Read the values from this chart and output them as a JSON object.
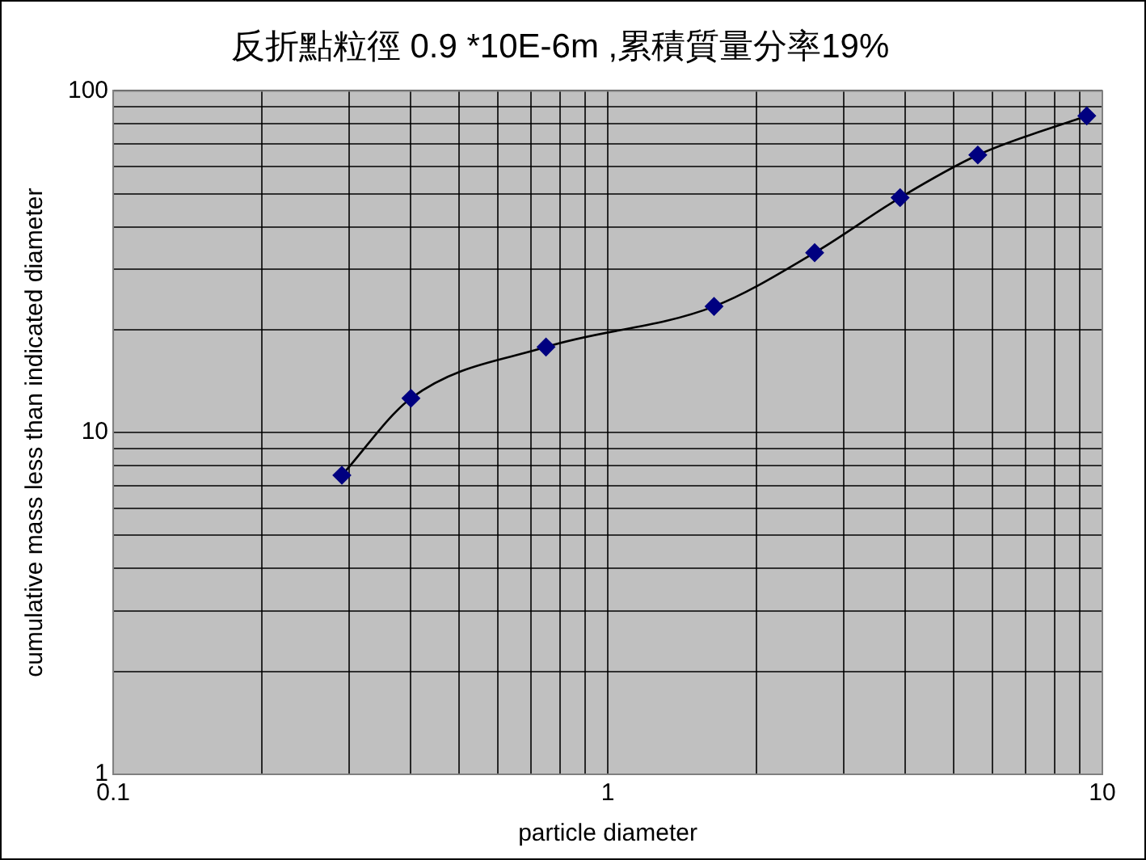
{
  "chart_data": {
    "type": "line",
    "title": "反折點粒徑 0.9 *10E-6m ,累積質量分率19%",
    "xlabel": "particle diameter",
    "ylabel": "cumulative mass less than indicated diameter",
    "x": [
      0.29,
      0.4,
      0.75,
      1.64,
      2.62,
      3.9,
      5.6,
      9.3
    ],
    "series": [
      {
        "color": "#000080",
        "values": [
          7.5,
          12.6,
          17.8,
          23.4,
          33.6,
          48.7,
          64.9,
          84.5
        ]
      }
    ],
    "log": "xy",
    "grid": true,
    "legend": false,
    "marker": "diamond",
    "line_style": "solid",
    "xlim": [
      0.1,
      10
    ],
    "ylim": [
      1,
      100
    ],
    "xticks": [
      0.1,
      {
        "value": 0.2,
        "label": null
      },
      {
        "value": 0.3,
        "label": null
      },
      {
        "value": 0.4,
        "label": null
      },
      {
        "value": 0.5,
        "label": null
      },
      {
        "value": 0.6,
        "label": null
      },
      {
        "value": 0.7,
        "label": null
      },
      {
        "value": 0.8,
        "label": null
      },
      {
        "value": 0.9,
        "label": null
      },
      1,
      {
        "value": 2,
        "label": null
      },
      {
        "value": 3,
        "label": null
      },
      {
        "value": 4,
        "label": null
      },
      {
        "value": 5,
        "label": null
      },
      {
        "value": 6,
        "label": null
      },
      {
        "value": 7,
        "label": null
      },
      {
        "value": 8,
        "label": null
      },
      {
        "value": 9,
        "label": null
      },
      10
    ],
    "yticks": [
      1,
      {
        "value": 2,
        "label": null
      },
      {
        "value": 3,
        "label": null
      },
      {
        "value": 4,
        "label": null
      },
      {
        "value": 5,
        "label": null
      },
      {
        "value": 6,
        "label": null
      },
      {
        "value": 7,
        "label": null
      },
      {
        "value": 8,
        "label": null
      },
      {
        "value": 9,
        "label": null
      },
      10,
      {
        "value": 20,
        "label": null
      },
      {
        "value": 30,
        "label": null
      },
      {
        "value": 40,
        "label": null
      },
      {
        "value": 50,
        "label": null
      },
      {
        "value": 60,
        "label": null
      },
      {
        "value": 70,
        "label": null
      },
      {
        "value": 80,
        "label": null
      },
      {
        "value": 90,
        "label": null
      },
      100
    ]
  }
}
